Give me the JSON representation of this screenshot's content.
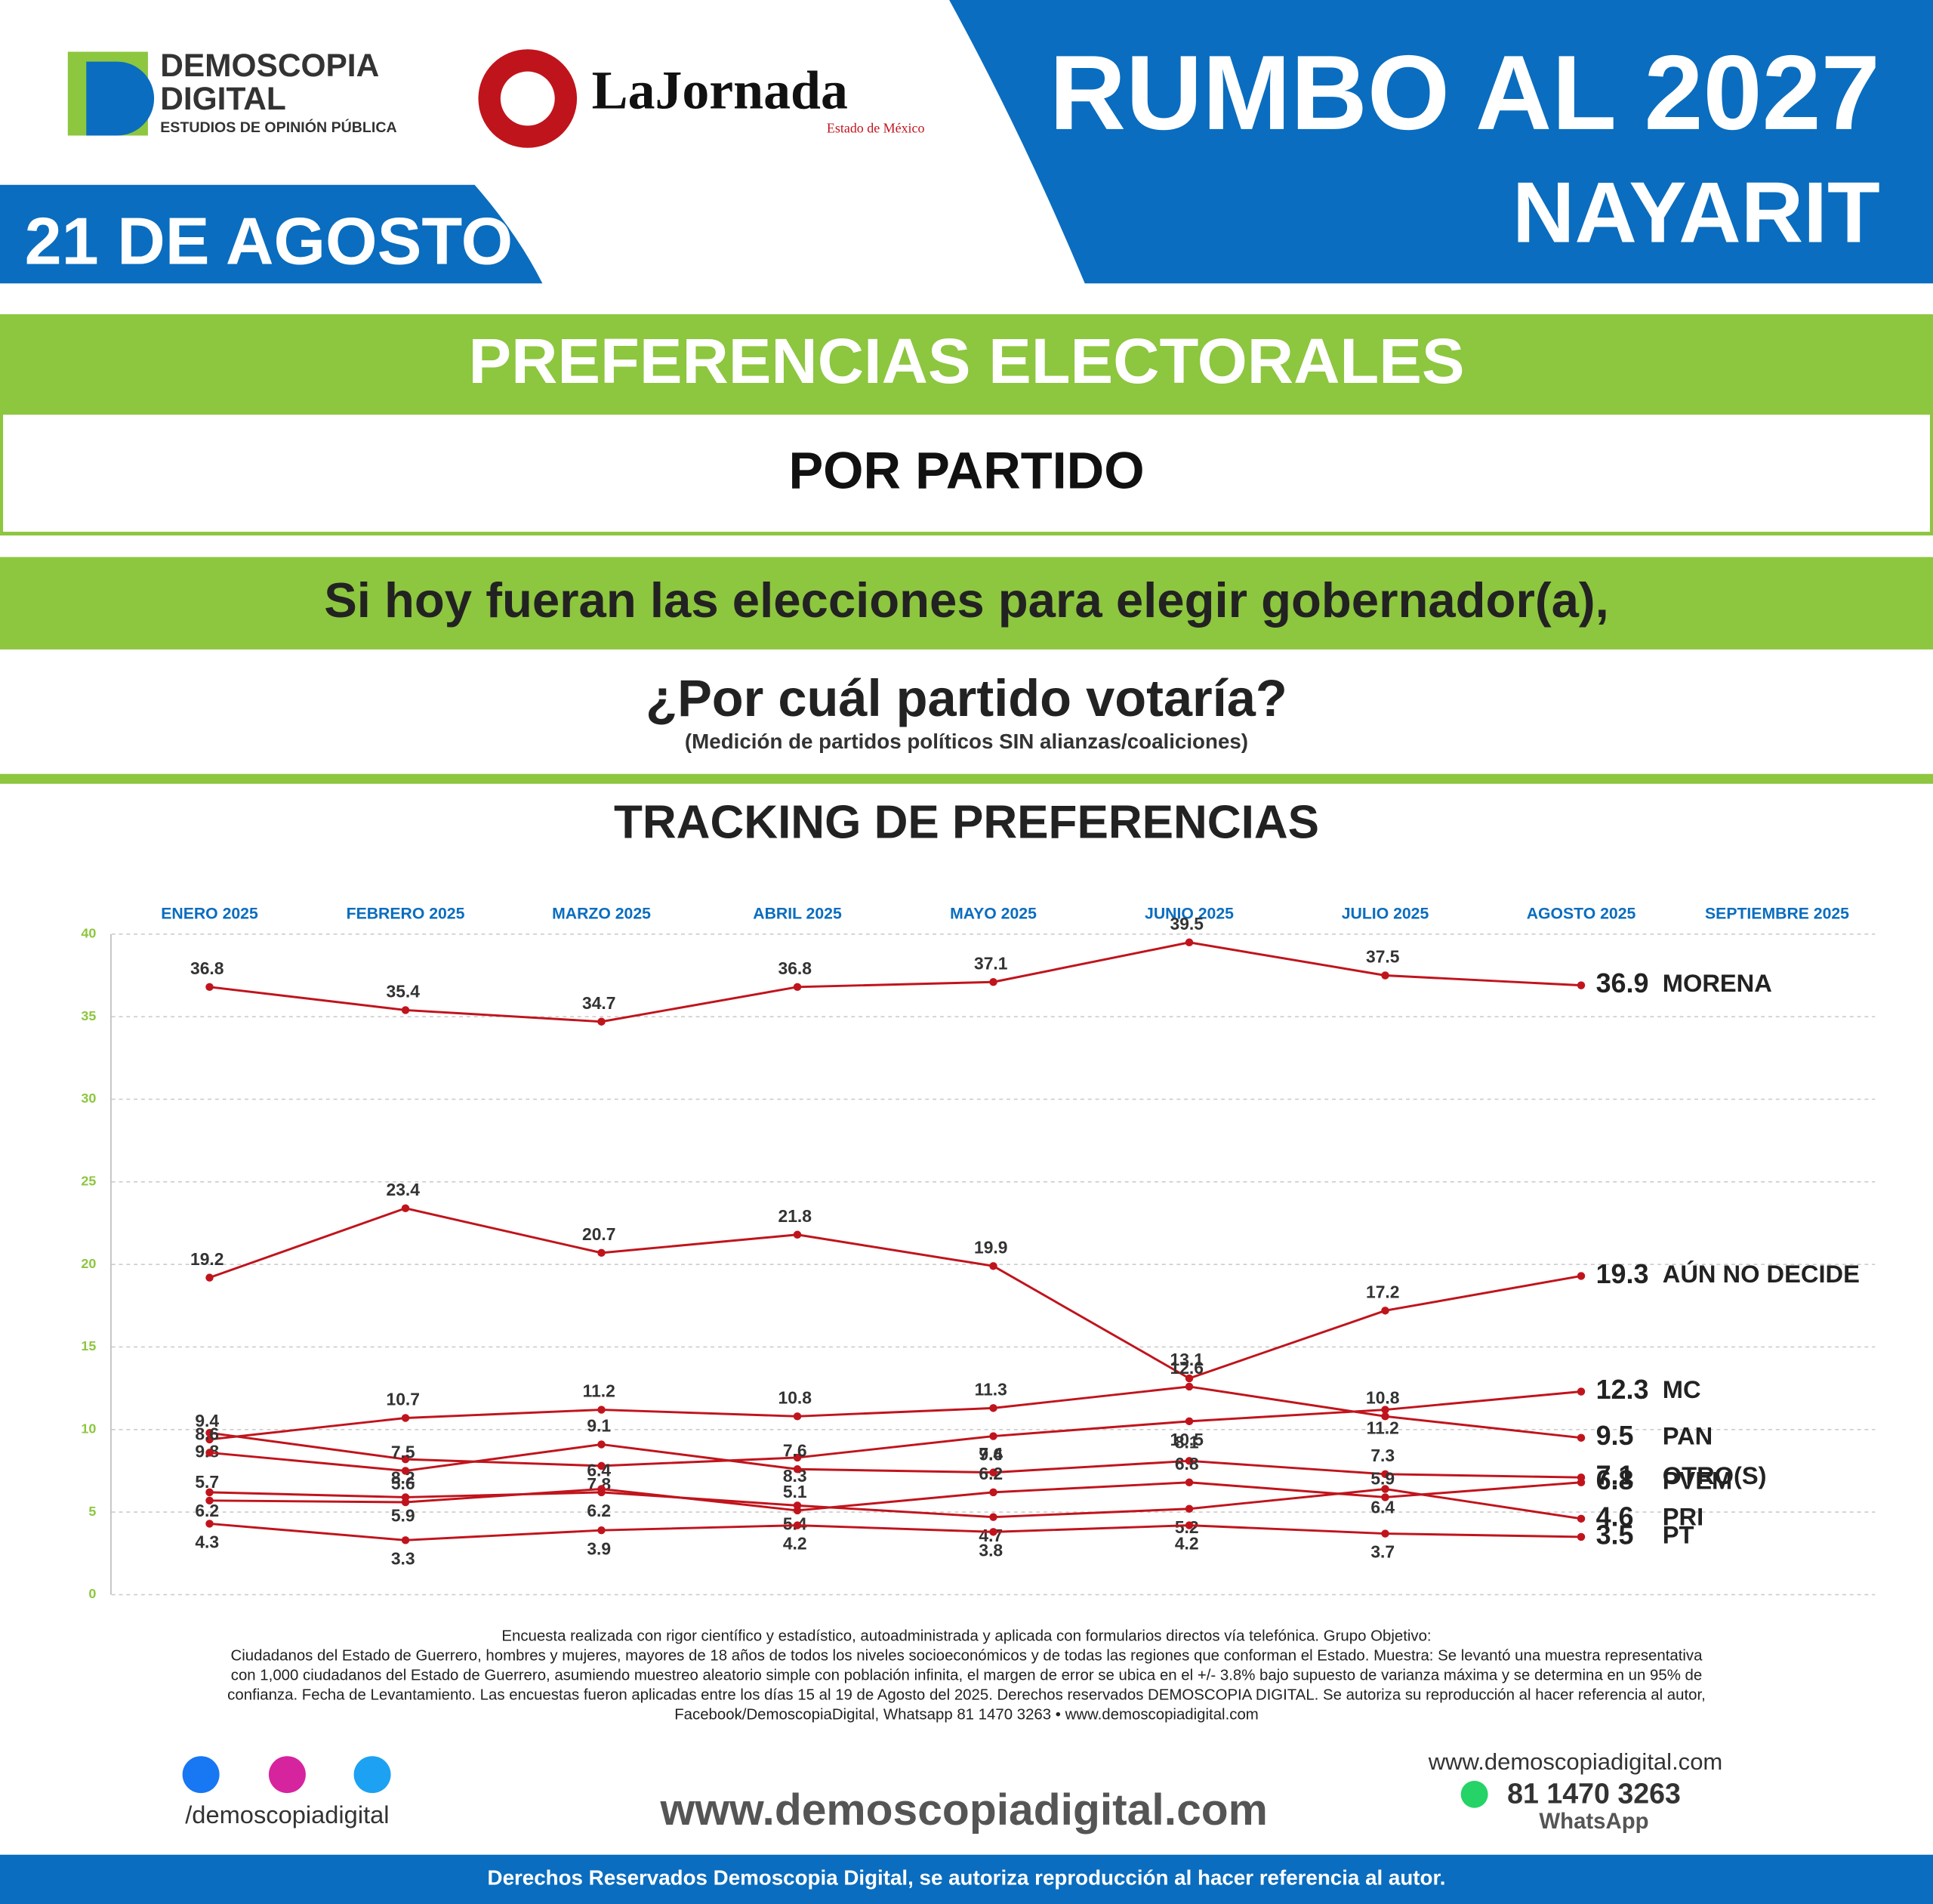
{
  "header": {
    "brand1": "DEMOSCOPIA",
    "brand2": "DIGITAL",
    "brand_sub": "ESTUDIOS DE OPINIÓN PÚBLICA",
    "paper": "LaJornada",
    "paper_sub": "Estado de México",
    "date": "21 DE AGOSTO",
    "headline": "RUMBO AL 2027",
    "region": "NAYARIT"
  },
  "banners": {
    "title": "PREFERENCIAS ELECTORALES",
    "subtitle": "POR PARTIDO",
    "question1": "Si hoy fueran las elecciones para elegir gobernador(a),",
    "question2": "¿Por cuál partido votaría?",
    "note": "(Medición de partidos políticos SIN alianzas/coaliciones)"
  },
  "chart_data": {
    "type": "line",
    "title": "TRACKING DE PREFERENCIAS",
    "categories": [
      "ENERO 2025",
      "FEBRERO 2025",
      "MARZO 2025",
      "ABRIL 2025",
      "MAYO 2025",
      "JUNIO 2025",
      "JULIO 2025",
      "AGOSTO 2025",
      "SEPTIEMBRE 2025"
    ],
    "series": [
      {
        "name": "MORENA",
        "color": "#c0141c",
        "values": [
          36.8,
          35.4,
          34.7,
          36.8,
          37.1,
          39.5,
          37.5,
          36.9,
          null
        ]
      },
      {
        "name": "AÚN NO DECIDE",
        "color": "#c0141c",
        "values": [
          19.2,
          23.4,
          20.7,
          21.8,
          19.9,
          13.1,
          17.2,
          19.3,
          null
        ]
      },
      {
        "name": "MC",
        "color": "#c0141c",
        "values": [
          9.8,
          8.2,
          7.8,
          8.3,
          9.6,
          10.5,
          11.2,
          12.3,
          null
        ]
      },
      {
        "name": "PAN",
        "color": "#c0141c",
        "values": [
          9.4,
          10.7,
          11.2,
          10.8,
          11.3,
          12.6,
          10.8,
          9.5,
          null
        ]
      },
      {
        "name": "OTRO(S)",
        "color": "#c0141c",
        "values": [
          8.6,
          7.5,
          9.1,
          7.6,
          7.4,
          8.1,
          7.3,
          7.1,
          null
        ]
      },
      {
        "name": "PVEM",
        "color": "#c0141c",
        "values": [
          5.7,
          5.6,
          6.4,
          5.1,
          6.2,
          6.8,
          5.9,
          6.8,
          null
        ]
      },
      {
        "name": "PRI",
        "color": "#c0141c",
        "values": [
          6.2,
          5.9,
          6.2,
          5.4,
          4.7,
          5.2,
          6.4,
          4.6,
          null
        ]
      },
      {
        "name": "PT",
        "color": "#c0141c",
        "values": [
          4.3,
          3.3,
          3.9,
          4.2,
          3.8,
          4.2,
          3.7,
          3.5,
          null
        ]
      }
    ],
    "ylim": [
      0,
      40
    ],
    "yticks": [
      0,
      5,
      10,
      15,
      20,
      25,
      30,
      35,
      40
    ],
    "grid": true
  },
  "footer": {
    "method": [
      "Encuesta realizada con rigor científico y estadístico, autoadministrada y aplicada con formularios directos vía telefónica. Grupo Objetivo:",
      "Ciudadanos del Estado de Guerrero, hombres y mujeres, mayores de 18 años de todos los niveles socioeconómicos y de todas las regiones que conforman el Estado. Muestra: Se levantó una muestra representativa",
      "con 1,000 ciudadanos del Estado de Guerrero, asumiendo muestreo aleatorio simple con población infinita, el margen de error se ubica en el +/- 3.8% bajo supuesto de varianza máxima y se determina en un 95% de",
      "confianza. Fecha de Levantamiento. Las encuestas fueron aplicadas entre los días 15 al 19 de Agosto del 2025. Derechos reservados DEMOSCOPIA DIGITAL. Se autoriza su reproducción al hacer referencia al autor,",
      "Facebook/DemoscopiaDigital, Whatsapp 81 1470 3263 • www.demoscopiadigital.com"
    ],
    "handle": "/demoscopiadigital",
    "site": "www.demoscopiadigital.com",
    "site_small": "www.demoscopiadigital.com",
    "phone": "81 1470 3263",
    "whatsapp": "WhatsApp",
    "rights": "Derechos Reservados Demoscopia Digital, se autoriza reproducción al hacer referencia al autor."
  }
}
